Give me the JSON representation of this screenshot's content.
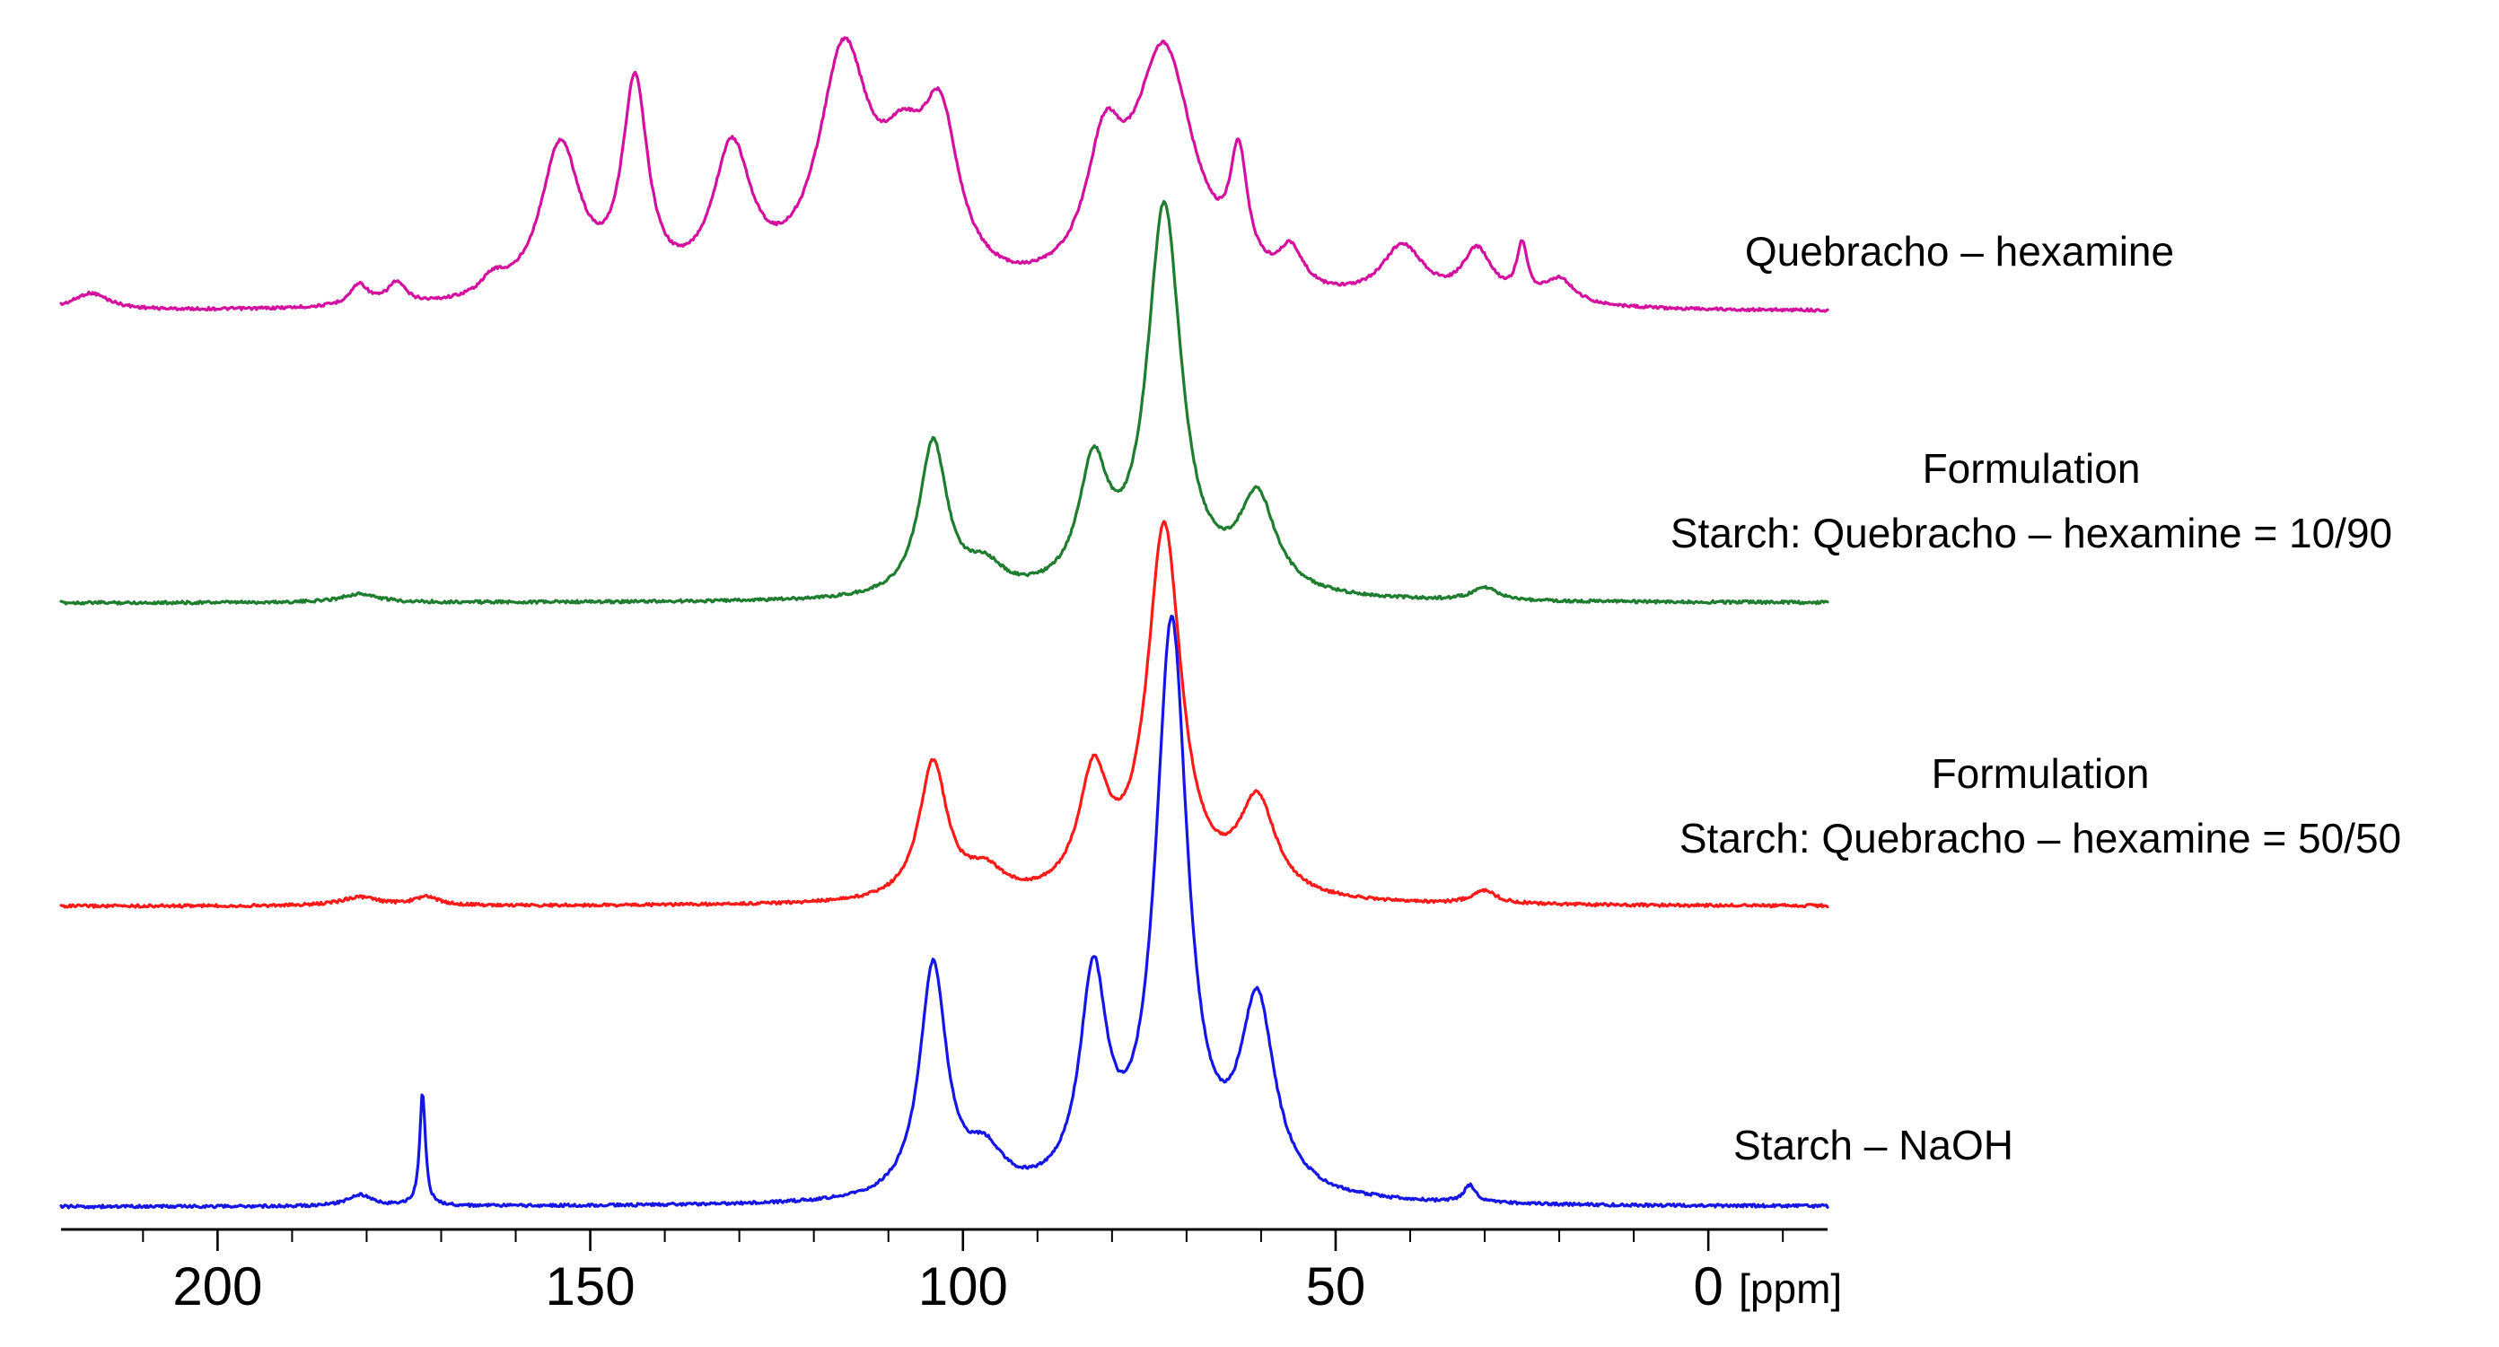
{
  "chart_data": {
    "type": "line",
    "title": "",
    "xlabel": "",
    "x_unit_label": "[ppm]",
    "ylabel": "",
    "x_reversed": true,
    "xlim": [
      221,
      -16
    ],
    "x_ticks": [
      200,
      150,
      100,
      50,
      0
    ],
    "x_tick_labels": [
      "200",
      "150",
      "100",
      "50",
      "0"
    ],
    "grid": false,
    "legend": "none",
    "series": [
      {
        "name": "Quebracho – hexamine",
        "label_lines": [
          "Quebracho – hexamine"
        ],
        "color": "#d4119f",
        "baseline": 0.0,
        "peaks": [
          {
            "ppm": 217,
            "height": 0.04,
            "width": 3.0
          },
          {
            "ppm": 181,
            "height": 0.05,
            "width": 1.5
          },
          {
            "ppm": 176,
            "height": 0.05,
            "width": 1.5
          },
          {
            "ppm": 163,
            "height": 0.04,
            "width": 2.0
          },
          {
            "ppm": 154,
            "height": 0.36,
            "width": 3.3
          },
          {
            "ppm": 144,
            "height": 0.48,
            "width": 2.1
          },
          {
            "ppm": 131,
            "height": 0.33,
            "width": 3.2
          },
          {
            "ppm": 116,
            "height": 0.54,
            "width": 4.2
          },
          {
            "ppm": 108,
            "height": 0.24,
            "width": 4.0
          },
          {
            "ppm": 103,
            "height": 0.34,
            "width": 3.0
          },
          {
            "ppm": 81,
            "height": 0.28,
            "width": 3.0
          },
          {
            "ppm": 73,
            "height": 0.57,
            "width": 5.0
          },
          {
            "ppm": 63,
            "height": 0.26,
            "width": 1.4
          },
          {
            "ppm": 56,
            "height": 0.09,
            "width": 2.0
          },
          {
            "ppm": 41,
            "height": 0.13,
            "width": 3.5
          },
          {
            "ppm": 31,
            "height": 0.12,
            "width": 2.5
          },
          {
            "ppm": 25,
            "height": 0.12,
            "width": 0.9
          },
          {
            "ppm": 20,
            "height": 0.06,
            "width": 2.5
          }
        ]
      },
      {
        "name": "Formulation Starch: Quebracho – hexamine = 10/90",
        "label_lines": [
          "Formulation",
          "Starch: Quebracho – hexamine = 10/90"
        ],
        "color": "#1e7d2e",
        "baseline": 0.0,
        "peaks": [
          {
            "ppm": 181,
            "height": 0.02,
            "width": 3.0
          },
          {
            "ppm": 104,
            "height": 0.36,
            "width": 2.3
          },
          {
            "ppm": 97,
            "height": 0.06,
            "width": 3.0
          },
          {
            "ppm": 82.5,
            "height": 0.28,
            "width": 2.4
          },
          {
            "ppm": 73,
            "height": 0.9,
            "width": 2.8
          },
          {
            "ppm": 60.5,
            "height": 0.22,
            "width": 3.0
          },
          {
            "ppm": 30,
            "height": 0.03,
            "width": 2.0
          }
        ]
      },
      {
        "name": "Formulation Starch: Quebracho – hexamine = 50/50",
        "label_lines": [
          "Formulation",
          "Starch: Quebracho – hexamine = 50/50"
        ],
        "color": "#ff1a1a",
        "baseline": 0.0,
        "peaks": [
          {
            "ppm": 181,
            "height": 0.02,
            "width": 3.0
          },
          {
            "ppm": 172,
            "height": 0.02,
            "width": 2.0
          },
          {
            "ppm": 104,
            "height": 0.32,
            "width": 2.3
          },
          {
            "ppm": 97,
            "height": 0.06,
            "width": 3.0
          },
          {
            "ppm": 82.5,
            "height": 0.27,
            "width": 2.4
          },
          {
            "ppm": 73,
            "height": 0.86,
            "width": 2.8
          },
          {
            "ppm": 60.5,
            "height": 0.22,
            "width": 3.0
          },
          {
            "ppm": 30,
            "height": 0.03,
            "width": 2.0
          }
        ]
      },
      {
        "name": "Starch – NaOH",
        "label_lines": [
          "Starch – NaOH"
        ],
        "color": "#1515e6",
        "baseline": 0.0,
        "peaks": [
          {
            "ppm": 181,
            "height": 0.02,
            "width": 2.0
          },
          {
            "ppm": 172.5,
            "height": 0.2,
            "width": 0.45
          },
          {
            "ppm": 104,
            "height": 0.41,
            "width": 2.2
          },
          {
            "ppm": 97,
            "height": 0.07,
            "width": 3.0
          },
          {
            "ppm": 82.5,
            "height": 0.37,
            "width": 2.2
          },
          {
            "ppm": 72,
            "height": 1.0,
            "width": 2.6
          },
          {
            "ppm": 60.5,
            "height": 0.33,
            "width": 2.8
          },
          {
            "ppm": 32,
            "height": 0.03,
            "width": 1.0
          }
        ]
      }
    ]
  }
}
